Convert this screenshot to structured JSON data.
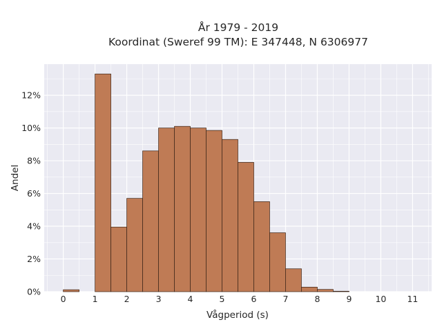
{
  "chart_data": {
    "type": "bar",
    "title_lines": [
      "År 1979 - 2019",
      "Koordinat (Sweref 99 TM): E 347448, N 6306977"
    ],
    "xlabel": "Vågperiod (s)",
    "ylabel": "Andel",
    "xlim": [
      -0.6,
      11.6
    ],
    "ylim": [
      0,
      13.9
    ],
    "x_ticks": [
      0,
      1,
      2,
      3,
      4,
      5,
      6,
      7,
      8,
      9,
      10,
      11
    ],
    "x_tick_labels": [
      "0",
      "1",
      "2",
      "3",
      "4",
      "5",
      "6",
      "7",
      "8",
      "9",
      "10",
      "11"
    ],
    "y_ticks": [
      0,
      2,
      4,
      6,
      8,
      10,
      12
    ],
    "y_tick_labels": [
      "0%",
      "2%",
      "4%",
      "6%",
      "8%",
      "10%",
      "12%"
    ],
    "grid": true,
    "bin_width": 0.5,
    "bins": [
      {
        "start": 0.0,
        "value": 0.12
      },
      {
        "start": 1.0,
        "value": 13.3
      },
      {
        "start": 1.5,
        "value": 3.95
      },
      {
        "start": 2.0,
        "value": 5.7
      },
      {
        "start": 2.5,
        "value": 8.6
      },
      {
        "start": 3.0,
        "value": 10.0
      },
      {
        "start": 3.5,
        "value": 10.1
      },
      {
        "start": 4.0,
        "value": 10.0
      },
      {
        "start": 4.5,
        "value": 9.85
      },
      {
        "start": 5.0,
        "value": 9.3
      },
      {
        "start": 5.5,
        "value": 7.9
      },
      {
        "start": 6.0,
        "value": 5.5
      },
      {
        "start": 6.5,
        "value": 3.6
      },
      {
        "start": 7.0,
        "value": 1.4
      },
      {
        "start": 7.5,
        "value": 0.28
      },
      {
        "start": 8.0,
        "value": 0.14
      },
      {
        "start": 8.5,
        "value": 0.03
      }
    ],
    "colors": {
      "bar_fill": "#bf7b55",
      "bar_stroke": "#3a2418",
      "plot_bg": "#eaeaf2",
      "grid": "#ffffff"
    }
  }
}
